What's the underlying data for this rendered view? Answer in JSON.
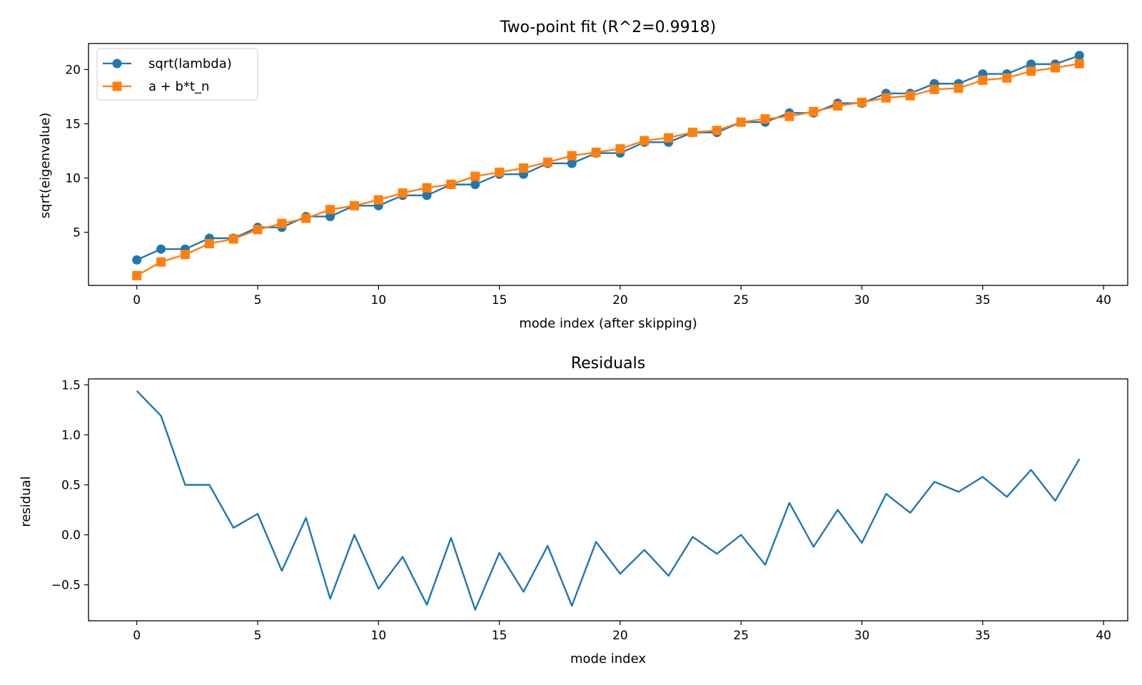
{
  "colors": {
    "series_blue": "#1f77b4",
    "series_orange": "#ff7f0e",
    "axes": "#000000",
    "background": "#ffffff"
  },
  "chart_data": [
    {
      "type": "line",
      "title": "Two-point fit (R^2=0.9918)",
      "xlabel": "mode index (after skipping)",
      "ylabel": "sqrt(eigenvalue)",
      "xlim": [
        -2,
        41
      ],
      "ylim": [
        0.1,
        22.4
      ],
      "xticks": [
        0,
        5,
        10,
        15,
        20,
        25,
        30,
        35,
        40
      ],
      "yticks": [
        5,
        10,
        15,
        20
      ],
      "grid": false,
      "legend_position": "top-left",
      "x": [
        0,
        1,
        2,
        3,
        4,
        5,
        6,
        7,
        8,
        9,
        10,
        11,
        12,
        13,
        14,
        15,
        16,
        17,
        18,
        19,
        20,
        21,
        22,
        23,
        24,
        25,
        26,
        27,
        28,
        29,
        30,
        31,
        32,
        33,
        34,
        35,
        36,
        37,
        38,
        39
      ],
      "series": [
        {
          "name": "sqrt(lambda)",
          "color": "#1f77b4",
          "marker": "circle",
          "values": [
            2.45,
            3.45,
            3.45,
            4.45,
            4.45,
            5.45,
            5.45,
            6.45,
            6.45,
            7.45,
            7.45,
            8.4,
            8.4,
            9.4,
            9.4,
            10.35,
            10.35,
            11.35,
            11.35,
            12.3,
            12.3,
            13.3,
            13.3,
            14.2,
            14.2,
            15.15,
            15.15,
            16.0,
            16.0,
            16.9,
            16.9,
            17.8,
            17.8,
            18.7,
            18.7,
            19.6,
            19.6,
            20.5,
            20.5,
            21.3
          ]
        },
        {
          "name": "a + b*t_n",
          "color": "#ff7f0e",
          "marker": "square",
          "values": [
            1.01,
            2.26,
            2.95,
            3.95,
            4.38,
            5.24,
            5.81,
            6.28,
            7.09,
            7.45,
            7.99,
            8.62,
            9.1,
            9.42,
            10.16,
            10.53,
            10.92,
            11.46,
            12.06,
            12.37,
            12.69,
            13.45,
            13.71,
            14.22,
            14.39,
            15.15,
            15.45,
            15.68,
            16.12,
            16.65,
            16.98,
            17.39,
            17.58,
            18.17,
            18.28,
            19.02,
            19.22,
            19.85,
            20.16,
            20.54
          ]
        }
      ]
    },
    {
      "type": "line",
      "title": "Residuals",
      "xlabel": "mode index",
      "ylabel": "residual",
      "xlim": [
        -2,
        41
      ],
      "ylim": [
        -0.86,
        1.56
      ],
      "xticks": [
        0,
        5,
        10,
        15,
        20,
        25,
        30,
        35,
        40
      ],
      "yticks": [
        -0.5,
        0.0,
        0.5,
        1.0,
        1.5
      ],
      "grid": false,
      "x": [
        0,
        1,
        2,
        3,
        4,
        5,
        6,
        7,
        8,
        9,
        10,
        11,
        12,
        13,
        14,
        15,
        16,
        17,
        18,
        19,
        20,
        21,
        22,
        23,
        24,
        25,
        26,
        27,
        28,
        29,
        30,
        31,
        32,
        33,
        34,
        35,
        36,
        37,
        38,
        39
      ],
      "series": [
        {
          "color": "#1f77b4",
          "marker": "none",
          "values": [
            1.44,
            1.19,
            0.5,
            0.5,
            0.07,
            0.21,
            -0.36,
            0.17,
            -0.64,
            0.0,
            -0.54,
            -0.22,
            -0.7,
            -0.03,
            -0.75,
            -0.18,
            -0.57,
            -0.11,
            -0.71,
            -0.07,
            -0.39,
            -0.15,
            -0.41,
            -0.02,
            -0.19,
            0.0,
            -0.3,
            0.32,
            -0.12,
            0.25,
            -0.08,
            0.41,
            0.22,
            0.53,
            0.43,
            0.58,
            0.38,
            0.65,
            0.34,
            0.76
          ]
        }
      ]
    }
  ]
}
